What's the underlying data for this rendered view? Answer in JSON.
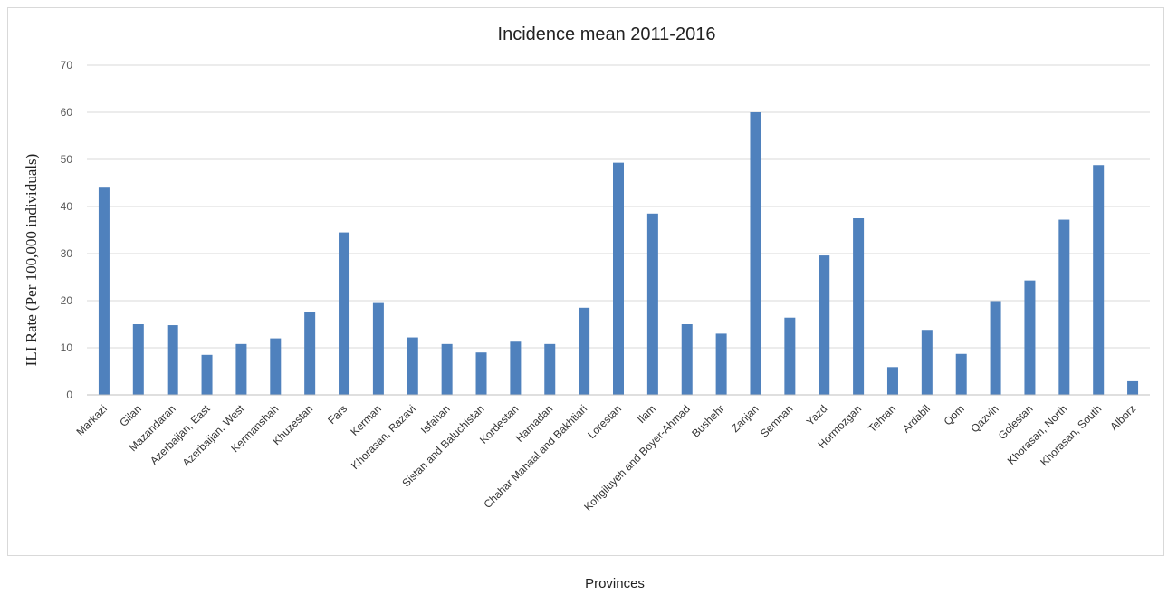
{
  "chart_data": {
    "type": "bar",
    "title": "Incidence mean 2011-2016",
    "xlabel": "Provinces",
    "ylabel": "ILI Rate (Per 100,000 individuals)",
    "ylim": [
      0,
      70
    ],
    "yticks": [
      0,
      10,
      20,
      30,
      40,
      50,
      60,
      70
    ],
    "grid": true,
    "bar_color": "#4f81bd",
    "categories": [
      "Markazi",
      "Gilan",
      "Mazandaran",
      "Azerbaijan, East",
      "Azerbaijan, West",
      "Kermanshah",
      "Khuzestan",
      "Fars",
      "Kerman",
      "Khorasan, Razavi",
      "Isfahan",
      "Sistan and Baluchistan",
      "Kordestan",
      "Hamadan",
      "Chahar Mahaal and Bakhtiari",
      "Lorestan",
      "Ilam",
      "Kohgiluyeh and Boyer-Ahmad",
      "Bushehr",
      "Zanjan",
      "Semnan",
      "Yazd",
      "Hormozgan",
      "Tehran",
      "Ardabil",
      "Qom",
      "Qazvin",
      "Golestan",
      "Khorasan, North",
      "Khorasan, South",
      "Alborz"
    ],
    "values": [
      44,
      15,
      14.8,
      8.5,
      10.8,
      12,
      17.5,
      34.5,
      19.5,
      12.2,
      10.8,
      9,
      11.3,
      10.8,
      18.5,
      49.3,
      38.5,
      15,
      13,
      60,
      16.4,
      29.6,
      37.5,
      5.9,
      13.8,
      8.7,
      19.9,
      24.3,
      37.2,
      48.8,
      2.9
    ]
  }
}
